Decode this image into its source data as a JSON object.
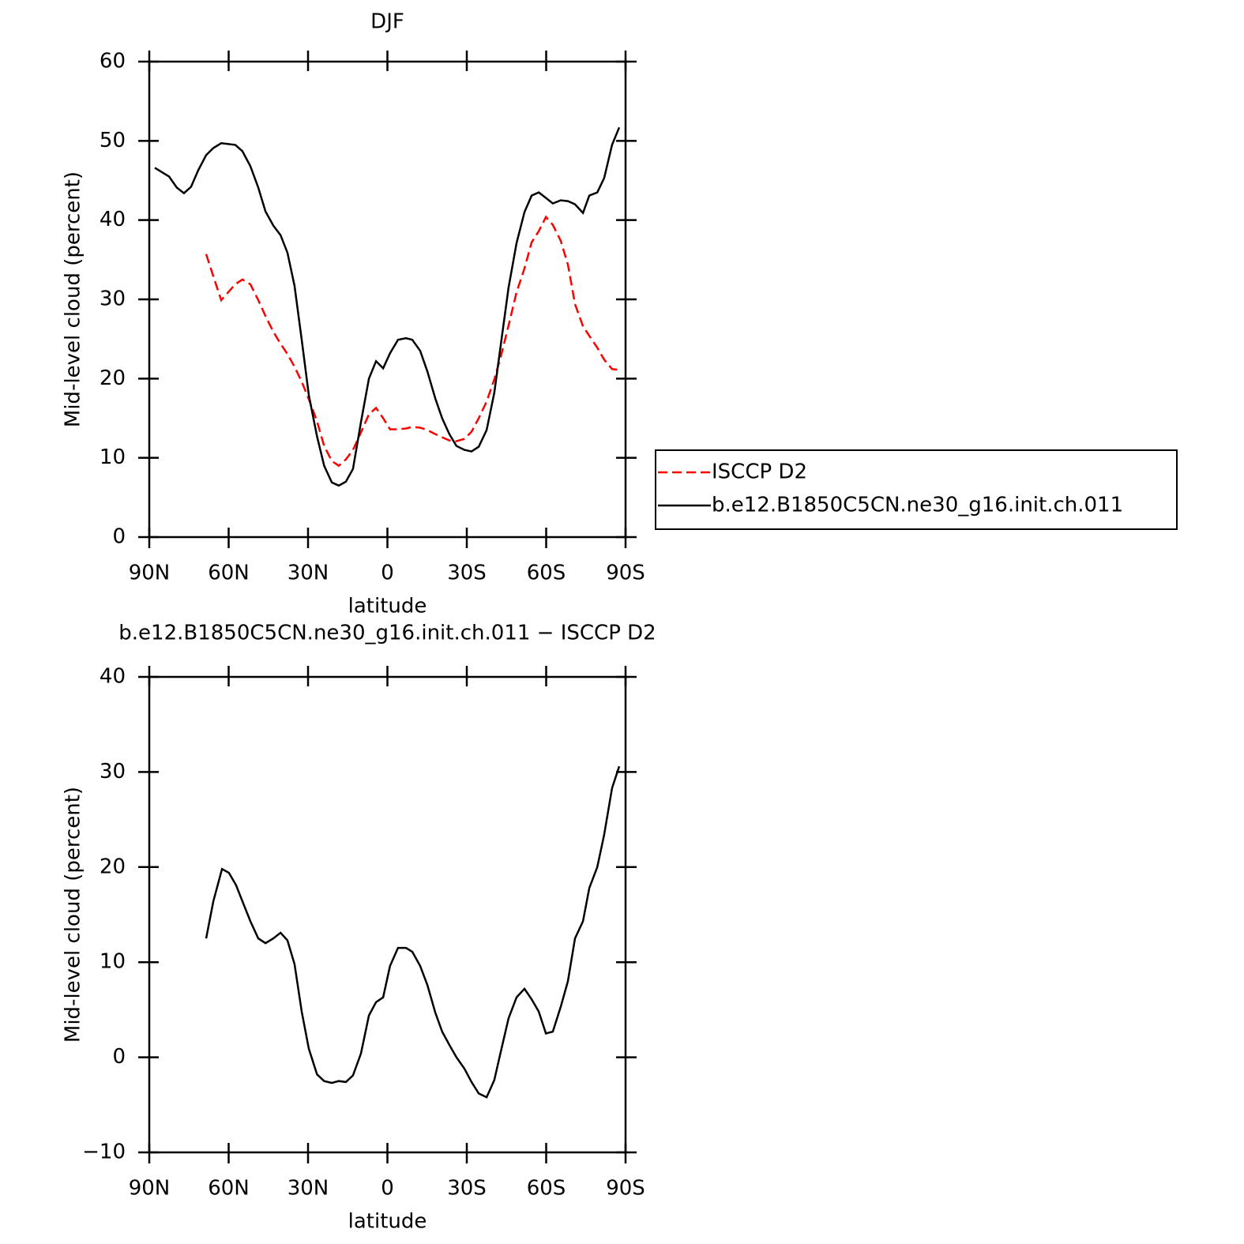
{
  "chart_data": [
    {
      "type": "line",
      "title": "DJF",
      "xlabel": "latitude",
      "ylabel": "Mid-level cloud (percent)",
      "x": [
        87.9,
        82.5,
        79.6,
        76.9,
        74.2,
        71.5,
        68.5,
        65.8,
        62.8,
        57.5,
        54.8,
        51.8,
        48.8,
        46.1,
        43.1,
        40.4,
        37.8,
        35.1,
        32.4,
        29.7,
        26.6,
        23.9,
        21.0,
        18.4,
        15.7,
        13.0,
        10.0,
        7.0,
        4.3,
        1.6,
        -1.0,
        -4.0,
        -7.0,
        -9.4,
        -12.4,
        -15.1,
        -18.1,
        -20.7,
        -23.4,
        -26.1,
        -29.1,
        -31.8,
        -34.5,
        -37.5,
        -40.4,
        -43.1,
        -45.8,
        -48.8,
        -51.8,
        -54.5,
        -57.2,
        -59.9,
        -62.5,
        -65.5,
        -68.2,
        -70.9,
        -73.9,
        -76.3,
        -79.3,
        -81.9,
        -84.9,
        -87.6
      ],
      "series": [
        {
          "name": "ISCCP D2",
          "color": "#ff0000",
          "dash": true,
          "values": [
            null,
            null,
            null,
            null,
            null,
            null,
            35.7,
            32.9,
            29.9,
            31.9,
            32.5,
            31.9,
            29.9,
            27.9,
            25.9,
            24.4,
            23.1,
            21.5,
            19.6,
            17.4,
            14.6,
            11.5,
            9.6,
            9.0,
            9.8,
            11.0,
            13.2,
            15.5,
            16.3,
            15.0,
            13.6,
            13.6,
            13.7,
            13.9,
            13.8,
            13.5,
            13.0,
            12.6,
            12.2,
            12.1,
            12.4,
            13.3,
            15.0,
            17.1,
            19.9,
            23.1,
            26.7,
            30.9,
            33.9,
            37.2,
            38.6,
            40.4,
            39.4,
            37.4,
            34.4,
            29.4,
            26.6,
            25.4,
            23.9,
            22.4,
            21.2,
            21.1
          ]
        },
        {
          "name": "b.e12.B1850C5CN.ne30_g16.init.ch.011",
          "color": "#000000",
          "dash": false,
          "values": [
            46.6,
            45.5,
            44.1,
            43.4,
            44.2,
            46.3,
            48.2,
            49.1,
            49.7,
            49.5,
            48.7,
            46.8,
            44.1,
            41.1,
            39.3,
            38.1,
            35.9,
            31.7,
            24.9,
            17.9,
            12.7,
            9.0,
            6.9,
            6.5,
            7.0,
            8.6,
            14.5,
            20.0,
            22.2,
            21.3,
            23.2,
            24.9,
            25.1,
            24.9,
            23.5,
            20.9,
            17.5,
            15.0,
            13.0,
            11.5,
            11.0,
            10.8,
            11.4,
            13.5,
            18.2,
            24.9,
            31.5,
            37.1,
            41.0,
            43.1,
            43.5,
            42.8,
            42.1,
            42.5,
            42.4,
            42.0,
            40.9,
            43.1,
            43.5,
            45.3,
            49.5,
            51.7
          ]
        }
      ],
      "xlim": [
        90,
        -90
      ],
      "xticks": [
        {
          "value": 90,
          "label": "90N"
        },
        {
          "value": 60,
          "label": "60N"
        },
        {
          "value": 30,
          "label": "30N"
        },
        0,
        {
          "value": -30,
          "label": "30S"
        },
        {
          "value": -60,
          "label": "60S"
        },
        {
          "value": -90,
          "label": "90S"
        }
      ],
      "ylim": [
        0,
        60
      ],
      "yticks": [
        0,
        10,
        20,
        30,
        40,
        50,
        60
      ],
      "legend": "outside-right"
    },
    {
      "type": "line",
      "title": "b.e12.B1850C5CN.ne30_g16.init.ch.011 − ISCCP D2",
      "xlabel": "latitude",
      "ylabel": "Mid-level cloud (percent)",
      "x": [
        68.5,
        65.8,
        62.5,
        59.9,
        57.2,
        54.5,
        51.8,
        48.8,
        46.1,
        43.1,
        40.4,
        37.8,
        35.1,
        32.4,
        29.7,
        26.6,
        23.9,
        21.0,
        18.4,
        15.7,
        13.0,
        10.0,
        7.0,
        4.3,
        1.6,
        -1.0,
        -4.0,
        -7.0,
        -9.4,
        -12.4,
        -15.1,
        -18.1,
        -20.7,
        -23.4,
        -26.1,
        -29.1,
        -31.8,
        -34.5,
        -37.5,
        -40.4,
        -43.1,
        -45.8,
        -48.8,
        -51.8,
        -54.5,
        -57.2,
        -59.9,
        -62.5,
        -65.5,
        -68.2,
        -70.9,
        -73.9,
        -76.3,
        -79.3,
        -81.9,
        -84.9,
        -87.6
      ],
      "series": [
        {
          "color": "#000000",
          "dash": false,
          "values": [
            12.5,
            16.4,
            19.8,
            19.4,
            18.1,
            16.2,
            14.3,
            12.5,
            12.0,
            12.5,
            13.1,
            12.3,
            9.8,
            4.8,
            0.9,
            -1.8,
            -2.5,
            -2.7,
            -2.5,
            -2.6,
            -1.9,
            0.4,
            4.4,
            5.8,
            6.3,
            9.6,
            11.5,
            11.5,
            11.1,
            9.6,
            7.6,
            4.7,
            2.7,
            1.3,
            0.0,
            -1.2,
            -2.6,
            -3.8,
            -4.2,
            -2.4,
            0.9,
            4.1,
            6.3,
            7.2,
            6.1,
            4.8,
            2.5,
            2.7,
            5.3,
            8.0,
            12.5,
            14.3,
            17.8,
            20.0,
            23.4,
            28.3,
            30.6
          ]
        }
      ],
      "xlim": [
        90,
        -90
      ],
      "xticks": [
        {
          "value": 90,
          "label": "90N"
        },
        {
          "value": 60,
          "label": "60N"
        },
        {
          "value": 30,
          "label": "30N"
        },
        0,
        {
          "value": -30,
          "label": "30S"
        },
        {
          "value": -60,
          "label": "60S"
        },
        {
          "value": -90,
          "label": "90S"
        }
      ],
      "ylim": [
        -10,
        40
      ],
      "yticks": [
        {
          "value": -10,
          "label": "−10"
        },
        0,
        10,
        20,
        30,
        40
      ]
    }
  ]
}
